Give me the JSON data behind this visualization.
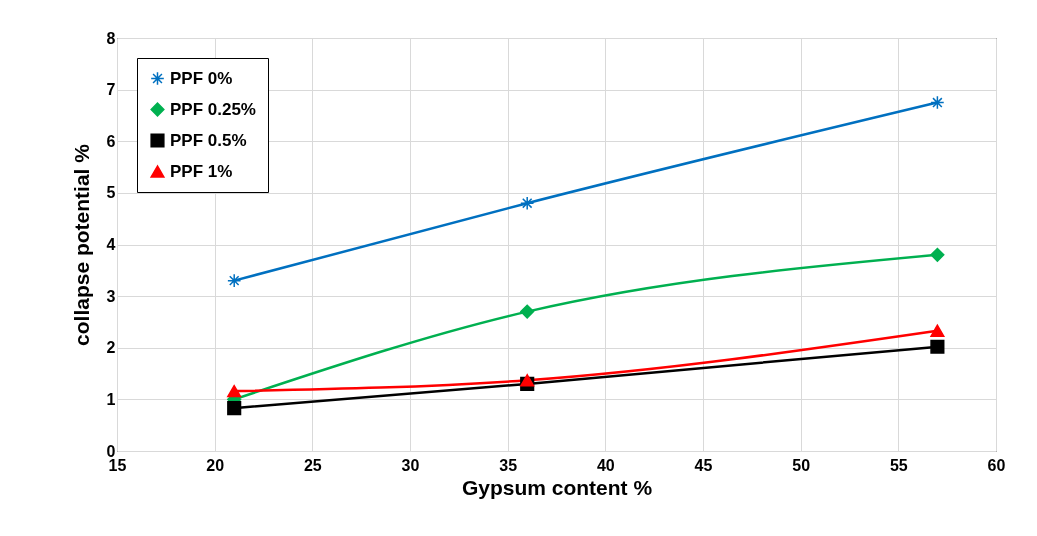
{
  "chart_data": {
    "type": "line",
    "xlabel": "Gypsum content %",
    "ylabel": "collapse potential %",
    "x": [
      21,
      36,
      57
    ],
    "series": [
      {
        "name": "PPF 0%",
        "color": "#0070c0",
        "marker": "cross",
        "values": [
          3.3,
          4.8,
          6.75
        ]
      },
      {
        "name": "PPF 0.25%",
        "color": "#00b050",
        "marker": "diamond",
        "values": [
          1.0,
          2.7,
          3.8
        ]
      },
      {
        "name": "PPF 0.5%",
        "color": "#000000",
        "marker": "square",
        "values": [
          0.83,
          1.3,
          2.02
        ]
      },
      {
        "name": "PPF 1%",
        "color": "#ff0000",
        "marker": "triangle",
        "values": [
          1.16,
          1.37,
          2.33
        ]
      }
    ],
    "xlim": [
      15,
      60
    ],
    "xticks": [
      15,
      20,
      25,
      30,
      35,
      40,
      45,
      50,
      55,
      60
    ],
    "ylim": [
      0,
      8
    ],
    "yticks": [
      0,
      1,
      2,
      3,
      4,
      5,
      6,
      7,
      8
    ],
    "grid": true,
    "legend": "top left"
  }
}
